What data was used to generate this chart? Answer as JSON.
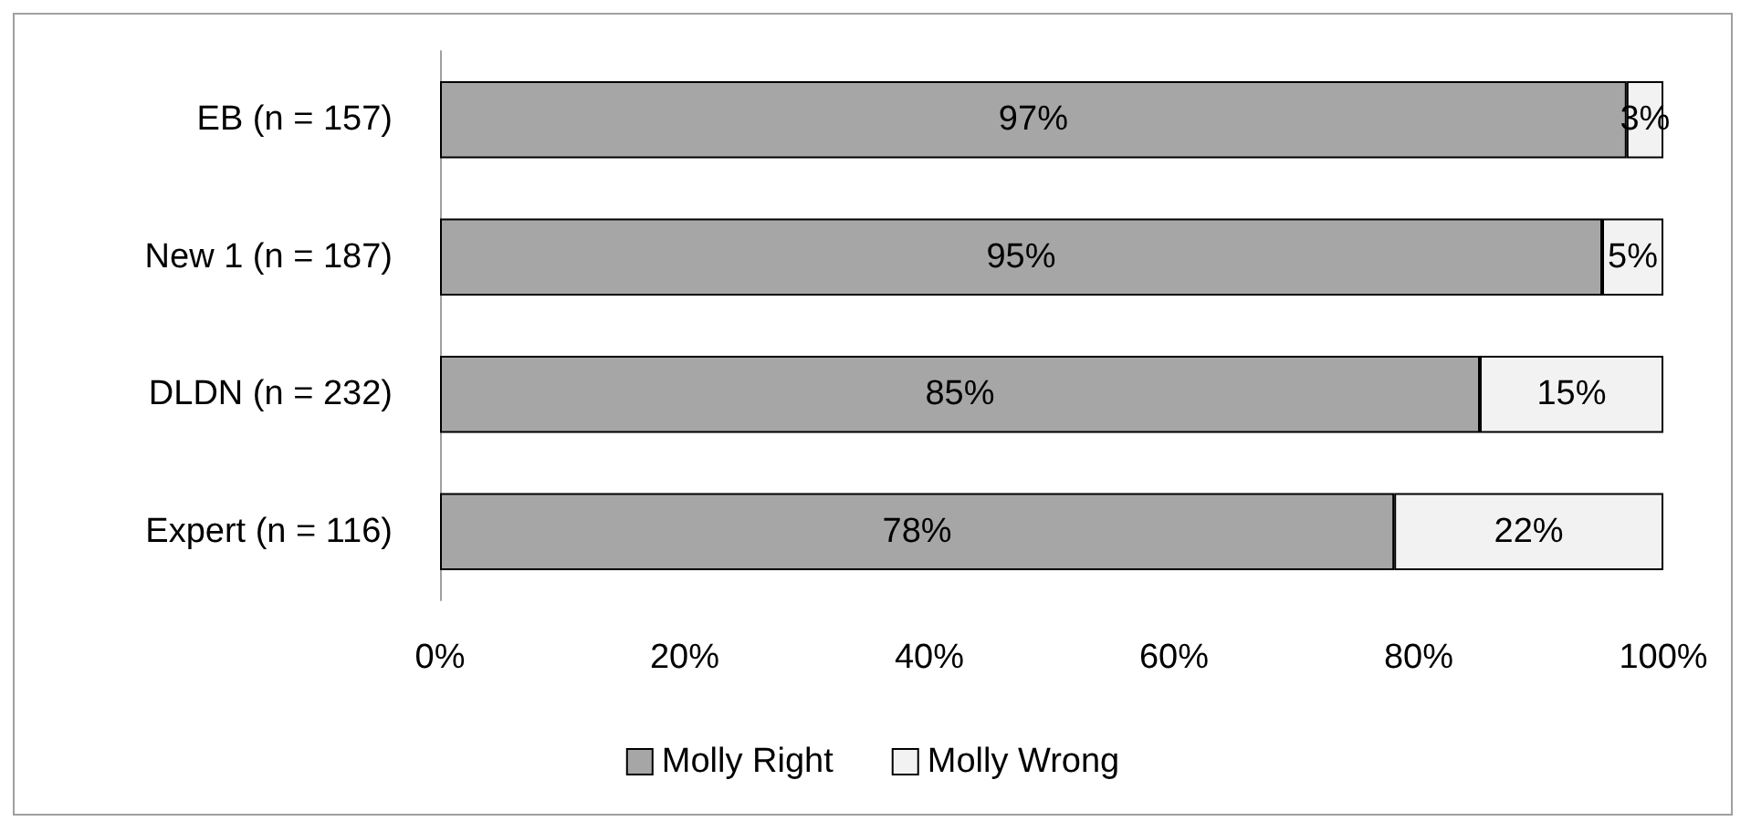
{
  "chart_data": {
    "type": "bar",
    "orientation": "horizontal",
    "stacked": true,
    "categories": [
      "EB (n = 157)",
      "New 1 (n = 187)",
      "DLDN (n = 232)",
      "Expert (n = 116)"
    ],
    "series": [
      {
        "name": "Molly Right",
        "color": "#a6a6a6",
        "values": [
          97,
          95,
          85,
          78
        ],
        "value_labels": [
          "97%",
          "95%",
          "85%",
          "78%"
        ]
      },
      {
        "name": "Molly Wrong",
        "color": "#f2f2f2",
        "values": [
          3,
          5,
          15,
          22
        ],
        "value_labels": [
          "3%",
          "5%",
          "15%",
          "22%"
        ]
      }
    ],
    "xlim": [
      0,
      100
    ],
    "xticks": [
      {
        "value": 0,
        "label": "0%"
      },
      {
        "value": 20,
        "label": "20%"
      },
      {
        "value": 40,
        "label": "40%"
      },
      {
        "value": 60,
        "label": "60%"
      },
      {
        "value": 80,
        "label": "80%"
      },
      {
        "value": 100,
        "label": "100%"
      }
    ],
    "grid": false,
    "legend": "bottom"
  }
}
